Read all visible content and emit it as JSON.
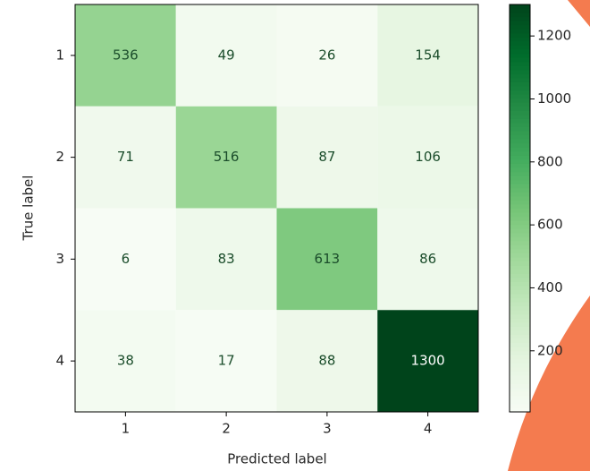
{
  "chart_data": {
    "type": "heatmap",
    "x_label": "Predicted label",
    "y_label": "True label",
    "x_categories": [
      "1",
      "2",
      "3",
      "4"
    ],
    "y_categories": [
      "1",
      "2",
      "3",
      "4"
    ],
    "values": [
      [
        536,
        49,
        26,
        154
      ],
      [
        71,
        516,
        87,
        106
      ],
      [
        6,
        83,
        613,
        86
      ],
      [
        38,
        17,
        88,
        1300
      ]
    ],
    "colormap": [
      "#f7fcf5",
      "#e5f5e0",
      "#c7e9c0",
      "#a1d99b",
      "#74c476",
      "#41ab5d",
      "#238b45",
      "#006d2c",
      "#00441b"
    ],
    "clim": [
      6,
      1300
    ],
    "colorbar_ticks": [
      200,
      400,
      600,
      800,
      1000,
      1200
    ]
  }
}
